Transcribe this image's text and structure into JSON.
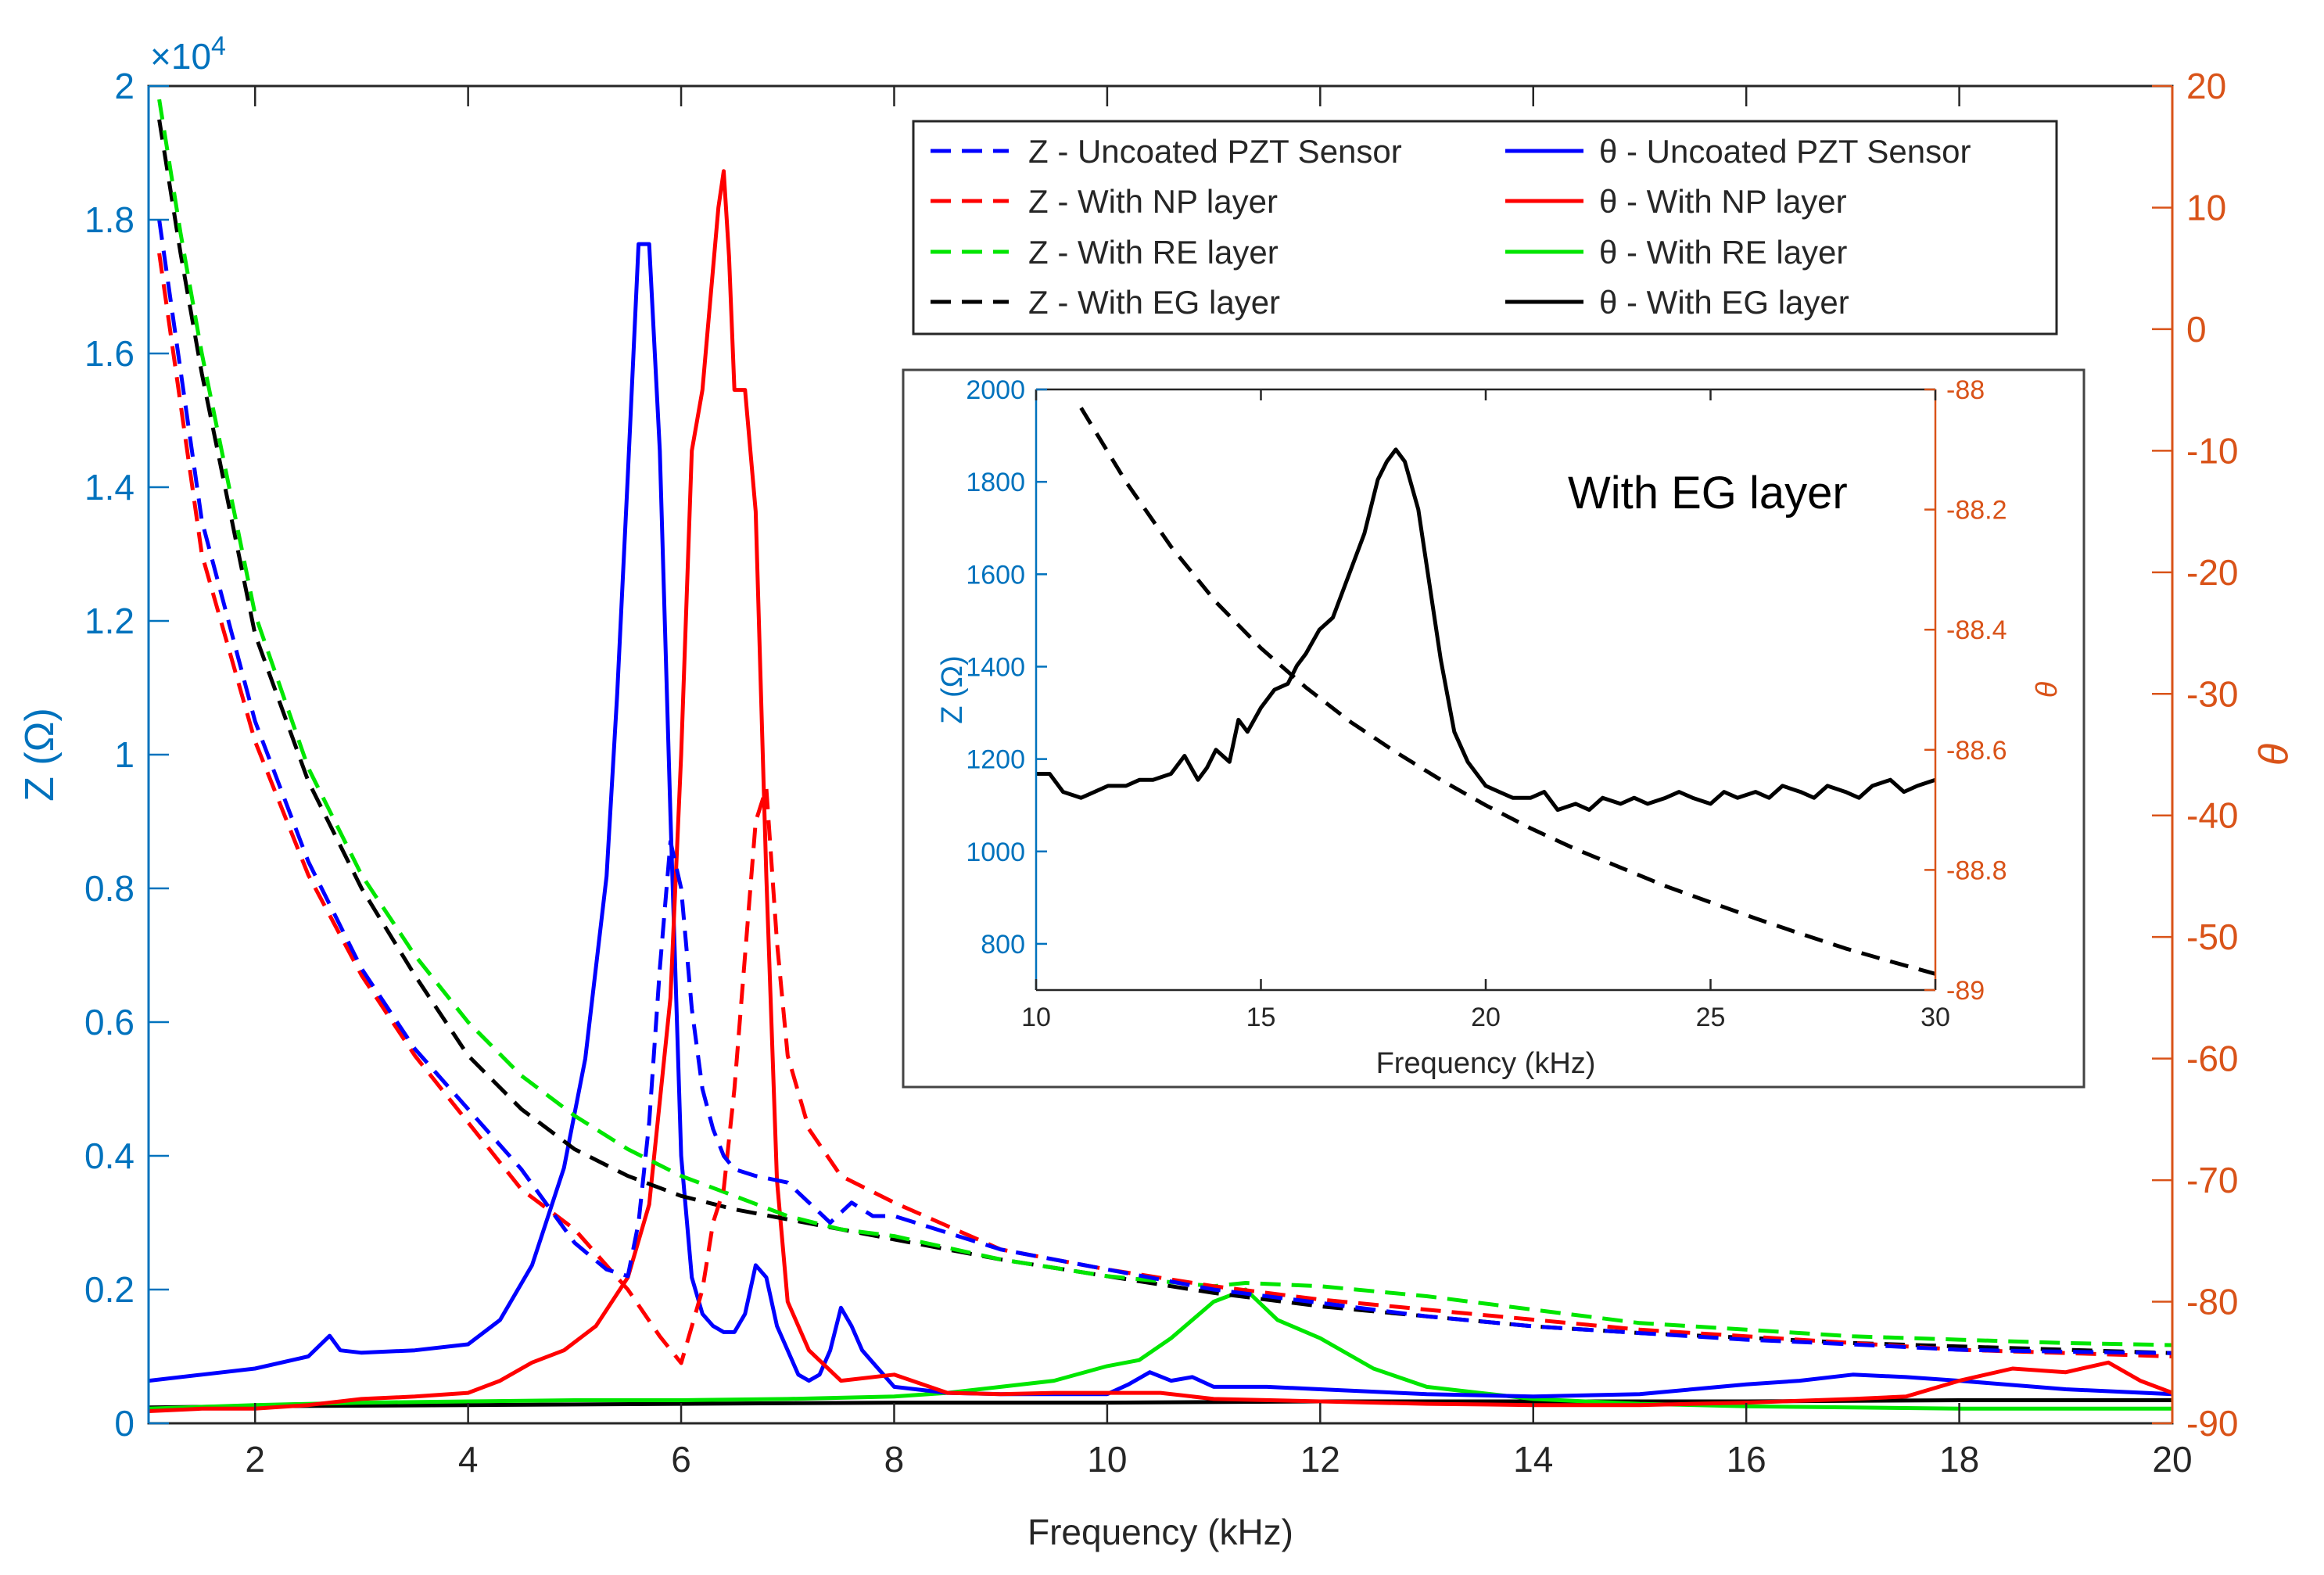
{
  "chart_data": [
    {
      "id": "main",
      "type": "line",
      "title": "",
      "xlabel": "Frequency (kHz)",
      "ylabel_left": "Z (Ω)",
      "ylabel_right": "θ",
      "left_axis_exponent": "×10",
      "left_axis_exponent_power": "4",
      "xlim": [
        1,
        20
      ],
      "ylim_left": [
        0,
        2
      ],
      "ylim_right": [
        -90,
        20
      ],
      "x_ticks": [
        "2",
        "4",
        "6",
        "8",
        "10",
        "12",
        "14",
        "16",
        "18",
        "20"
      ],
      "y_left_ticks": [
        "0",
        "0.2",
        "0.4",
        "0.6",
        "0.8",
        "1",
        "1.2",
        "1.4",
        "1.6",
        "1.8",
        "2"
      ],
      "y_right_ticks": [
        "-90",
        "-80",
        "-70",
        "-60",
        "-50",
        "-40",
        "-30",
        "-20",
        "-10",
        "0",
        "10",
        "20"
      ],
      "colors": {
        "blue": "#0000FF",
        "red": "#FF0000",
        "green": "#00E600",
        "black": "#000000",
        "left_axis": "#0072BD",
        "right_axis": "#D95319"
      },
      "legend_position": "top-right",
      "series": [
        {
          "name": "Z - Uncoated PZT Sensor",
          "axis": "left",
          "style": "dashed",
          "color": "#0000FF",
          "x": [
            1.1,
            1.5,
            2,
            2.5,
            3,
            3.5,
            4,
            4.5,
            5,
            5.3,
            5.5,
            5.6,
            5.7,
            5.8,
            5.9,
            6.0,
            6.1,
            6.2,
            6.3,
            6.4,
            6.5,
            6.7,
            7.0,
            7.2,
            7.4,
            7.6,
            7.8,
            8,
            9,
            10,
            11,
            12,
            13,
            14,
            15,
            16,
            17,
            18,
            19,
            20
          ],
          "y": [
            1.8,
            1.35,
            1.05,
            0.84,
            0.68,
            0.56,
            0.47,
            0.38,
            0.27,
            0.23,
            0.22,
            0.3,
            0.45,
            0.68,
            0.87,
            0.8,
            0.62,
            0.5,
            0.44,
            0.4,
            0.38,
            0.37,
            0.36,
            0.33,
            0.3,
            0.33,
            0.31,
            0.31,
            0.26,
            0.23,
            0.2,
            0.18,
            0.16,
            0.145,
            0.135,
            0.125,
            0.118,
            0.11,
            0.107,
            0.105
          ]
        },
        {
          "name": "Z - With NP layer",
          "axis": "left",
          "style": "dashed",
          "color": "#FF0000",
          "x": [
            1.1,
            1.5,
            2,
            2.5,
            3,
            3.5,
            4,
            4.5,
            5,
            5.5,
            5.8,
            6.0,
            6.2,
            6.3,
            6.4,
            6.5,
            6.6,
            6.7,
            6.8,
            6.9,
            7.0,
            7.2,
            7.5,
            8,
            9,
            10,
            11,
            12,
            13,
            14,
            15,
            16,
            17,
            18,
            19,
            20
          ],
          "y": [
            1.75,
            1.3,
            1.02,
            0.82,
            0.67,
            0.55,
            0.45,
            0.35,
            0.29,
            0.2,
            0.13,
            0.09,
            0.2,
            0.3,
            0.35,
            0.5,
            0.7,
            0.9,
            0.95,
            0.72,
            0.55,
            0.44,
            0.37,
            0.33,
            0.26,
            0.23,
            0.205,
            0.185,
            0.17,
            0.155,
            0.14,
            0.13,
            0.12,
            0.11,
            0.105,
            0.1
          ]
        },
        {
          "name": "Z - With RE layer",
          "axis": "left",
          "style": "dashed",
          "color": "#00E600",
          "x": [
            1.1,
            1.3,
            1.5,
            2,
            2.5,
            3,
            3.5,
            4,
            4.5,
            5,
            5.5,
            6,
            6.5,
            7,
            7.5,
            8,
            9,
            10,
            11,
            11.3,
            12,
            13,
            14,
            15,
            16,
            17,
            18,
            19,
            20
          ],
          "y": [
            1.98,
            1.78,
            1.6,
            1.21,
            0.98,
            0.82,
            0.7,
            0.6,
            0.52,
            0.46,
            0.41,
            0.37,
            0.34,
            0.31,
            0.29,
            0.28,
            0.245,
            0.22,
            0.205,
            0.21,
            0.205,
            0.19,
            0.17,
            0.15,
            0.14,
            0.13,
            0.125,
            0.12,
            0.117
          ]
        },
        {
          "name": "Z - With EG layer",
          "axis": "left",
          "style": "dashed",
          "color": "#000000",
          "x": [
            1.1,
            1.3,
            1.5,
            2,
            2.5,
            3,
            3.5,
            4,
            4.5,
            5,
            5.5,
            6,
            6.5,
            7,
            7.5,
            8,
            9,
            10,
            11,
            12,
            13,
            14,
            15,
            16,
            17,
            18,
            19,
            20
          ],
          "y": [
            1.95,
            1.75,
            1.57,
            1.18,
            0.96,
            0.8,
            0.67,
            0.55,
            0.47,
            0.41,
            0.37,
            0.34,
            0.32,
            0.305,
            0.29,
            0.275,
            0.245,
            0.22,
            0.195,
            0.175,
            0.16,
            0.145,
            0.135,
            0.128,
            0.12,
            0.115,
            0.11,
            0.105
          ]
        },
        {
          "name": "θ - Uncoated PZT Sensor",
          "axis": "right",
          "style": "solid",
          "color": "#0000FF",
          "x": [
            1,
            1.5,
            2,
            2.5,
            2.7,
            2.8,
            3,
            3.5,
            4,
            4.3,
            4.6,
            4.9,
            5.1,
            5.3,
            5.4,
            5.5,
            5.6,
            5.7,
            5.8,
            5.9,
            6.0,
            6.1,
            6.2,
            6.3,
            6.4,
            6.5,
            6.6,
            6.7,
            6.8,
            6.9,
            7.0,
            7.1,
            7.2,
            7.3,
            7.4,
            7.5,
            7.6,
            7.7,
            7.8,
            8,
            8.5,
            9,
            9.5,
            10,
            10.2,
            10.4,
            10.6,
            10.8,
            11,
            11.5,
            12,
            13,
            14,
            15,
            16,
            16.5,
            17,
            17.5,
            18,
            19,
            20
          ],
          "y": [
            -86.5,
            -86,
            -85.5,
            -84.5,
            -82.8,
            -84,
            -84.2,
            -84,
            -83.5,
            -81.5,
            -77,
            -69,
            -60,
            -45,
            -30,
            -12,
            7,
            7,
            -10,
            -40,
            -68,
            -78,
            -81,
            -82,
            -82.5,
            -82.5,
            -81,
            -77,
            -78,
            -82,
            -84,
            -86,
            -86.5,
            -86,
            -84,
            -80.5,
            -82,
            -84,
            -85,
            -87,
            -87.5,
            -87.6,
            -87.6,
            -87.6,
            -86.8,
            -85.8,
            -86.5,
            -86.2,
            -87,
            -87,
            -87.2,
            -87.6,
            -87.8,
            -87.6,
            -86.8,
            -86.5,
            -86,
            -86.2,
            -86.5,
            -87.2,
            -87.6
          ]
        },
        {
          "name": "θ - With NP layer",
          "axis": "right",
          "style": "solid",
          "color": "#FF0000",
          "x": [
            1,
            1.5,
            2,
            2.5,
            3,
            3.5,
            4,
            4.3,
            4.6,
            4.9,
            5.2,
            5.5,
            5.7,
            5.9,
            6.0,
            6.1,
            6.2,
            6.3,
            6.35,
            6.4,
            6.45,
            6.5,
            6.6,
            6.7,
            6.8,
            6.9,
            7.0,
            7.2,
            7.5,
            8,
            8.5,
            9,
            9.5,
            10,
            10.5,
            11,
            12,
            13,
            14,
            15,
            16,
            17,
            17.5,
            18,
            18.5,
            19,
            19.4,
            19.7,
            20
          ],
          "y": [
            -89,
            -88.8,
            -88.8,
            -88.5,
            -88,
            -87.8,
            -87.5,
            -86.5,
            -85,
            -84,
            -82,
            -78,
            -72,
            -55,
            -35,
            -10,
            -5,
            5,
            10,
            13,
            6,
            -5,
            -5,
            -15,
            -45,
            -70,
            -80,
            -84,
            -86.5,
            -86,
            -87.5,
            -87.6,
            -87.5,
            -87.5,
            -87.5,
            -88,
            -88.2,
            -88.4,
            -88.5,
            -88.5,
            -88.3,
            -88,
            -87.8,
            -86.5,
            -85.5,
            -85.8,
            -85,
            -86.5,
            -87.5
          ]
        },
        {
          "name": "θ - With RE layer",
          "axis": "right",
          "style": "solid",
          "color": "#00E600",
          "x": [
            1,
            2,
            3,
            4,
            5,
            6,
            7,
            8,
            8.5,
            9,
            9.5,
            10,
            10.3,
            10.6,
            11,
            11.3,
            11.6,
            12,
            12.5,
            13,
            14,
            15,
            16,
            17,
            18,
            19,
            20
          ],
          "y": [
            -88.8,
            -88.5,
            -88.3,
            -88.2,
            -88.1,
            -88.1,
            -88,
            -87.8,
            -87.5,
            -87,
            -86.5,
            -85.3,
            -84.8,
            -83,
            -80,
            -79,
            -81.5,
            -83,
            -85.5,
            -87,
            -88,
            -88.4,
            -88.6,
            -88.7,
            -88.8,
            -88.8,
            -88.8
          ]
        },
        {
          "name": "θ - With EG layer",
          "axis": "right",
          "style": "solid",
          "color": "#000000",
          "x": [
            1,
            2,
            4,
            6,
            8,
            10,
            12,
            14,
            16,
            18,
            20
          ],
          "y": [
            -88.7,
            -88.6,
            -88.5,
            -88.4,
            -88.3,
            -88.3,
            -88.2,
            -88.2,
            -88.2,
            -88.1,
            -88.1
          ]
        }
      ]
    },
    {
      "id": "inset",
      "type": "line",
      "title": "With EG layer",
      "xlabel": "Frequency (kHz)",
      "ylabel_left": "Z (Ω)",
      "ylabel_right": "θ",
      "xlim": [
        10,
        30
      ],
      "ylim_left": [
        700,
        2000
      ],
      "ylim_right": [
        -89,
        -88
      ],
      "x_ticks": [
        "10",
        "15",
        "20",
        "25",
        "30"
      ],
      "y_left_ticks": [
        "800",
        "1000",
        "1200",
        "1400",
        "1600",
        "1800",
        "2000"
      ],
      "y_right_ticks": [
        "-89",
        "-88.8",
        "-88.6",
        "-88.4",
        "-88.2",
        "-88"
      ],
      "series": [
        {
          "name": "Z - With EG layer",
          "axis": "left",
          "style": "dashed",
          "color": "#000000",
          "x": [
            11,
            12,
            13,
            14,
            15,
            16,
            17,
            18,
            19,
            20,
            21,
            22,
            23,
            24,
            25,
            26,
            27,
            28,
            29,
            30
          ],
          "y": [
            1960,
            1800,
            1660,
            1540,
            1440,
            1355,
            1280,
            1215,
            1155,
            1100,
            1050,
            1005,
            965,
            925,
            890,
            855,
            822,
            790,
            762,
            735
          ]
        },
        {
          "name": "θ - With EG layer",
          "axis": "right",
          "style": "solid",
          "color": "#000000",
          "x": [
            10,
            10.3,
            10.6,
            11,
            11.3,
            11.6,
            12,
            12.3,
            12.6,
            13,
            13.3,
            13.6,
            13.8,
            14,
            14.3,
            14.5,
            14.7,
            15,
            15.3,
            15.6,
            15.8,
            16,
            16.3,
            16.6,
            17,
            17.3,
            17.6,
            17.8,
            18,
            18.2,
            18.5,
            18.8,
            19,
            19.3,
            19.6,
            20,
            20.3,
            20.6,
            21,
            21.3,
            21.6,
            22,
            22.3,
            22.6,
            23,
            23.3,
            23.6,
            24,
            24.3,
            24.6,
            25,
            25.3,
            25.6,
            26,
            26.3,
            26.6,
            27,
            27.3,
            27.6,
            28,
            28.3,
            28.6,
            29,
            29.3,
            29.6,
            30
          ],
          "y": [
            -88.64,
            -88.64,
            -88.67,
            -88.68,
            -88.67,
            -88.66,
            -88.66,
            -88.65,
            -88.65,
            -88.64,
            -88.61,
            -88.65,
            -88.63,
            -88.6,
            -88.62,
            -88.55,
            -88.57,
            -88.53,
            -88.5,
            -88.49,
            -88.46,
            -88.44,
            -88.4,
            -88.38,
            -88.3,
            -88.24,
            -88.15,
            -88.12,
            -88.1,
            -88.12,
            -88.2,
            -88.35,
            -88.45,
            -88.57,
            -88.62,
            -88.66,
            -88.67,
            -88.68,
            -88.68,
            -88.67,
            -88.7,
            -88.69,
            -88.7,
            -88.68,
            -88.69,
            -88.68,
            -88.69,
            -88.68,
            -88.67,
            -88.68,
            -88.69,
            -88.67,
            -88.68,
            -88.67,
            -88.68,
            -88.66,
            -88.67,
            -88.68,
            -88.66,
            -88.67,
            -88.68,
            -88.66,
            -88.65,
            -88.67,
            -88.66,
            -88.65
          ]
        }
      ]
    }
  ]
}
